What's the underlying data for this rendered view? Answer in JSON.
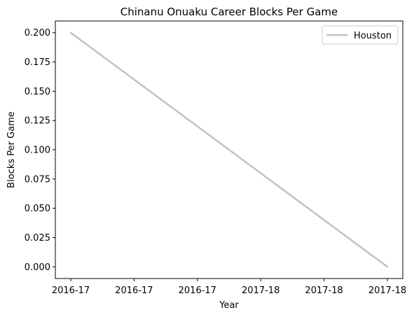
{
  "chart_data": {
    "type": "line",
    "title": "Chinanu Onuaku Career Blocks Per Game",
    "xlabel": "Year",
    "ylabel": "Blocks Per Game",
    "x_tick_labels": [
      "2016-17",
      "2016-17",
      "2016-17",
      "2017-18",
      "2017-18",
      "2017-18"
    ],
    "y_ticks": [
      "0.000",
      "0.025",
      "0.050",
      "0.075",
      "0.100",
      "0.125",
      "0.150",
      "0.175",
      "0.200"
    ],
    "ylim": [
      -0.01,
      0.21
    ],
    "grid": false,
    "legend_position": "top-right",
    "series": [
      {
        "name": "Houston",
        "color": "#c0c0c0",
        "x": [
          "2016-17",
          "2017-18"
        ],
        "y": [
          0.2,
          0.0
        ]
      }
    ]
  }
}
